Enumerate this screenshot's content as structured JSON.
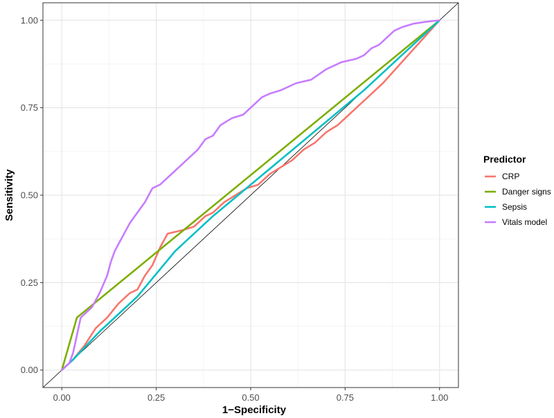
{
  "chart_data": {
    "type": "line",
    "xlabel": "1−Specificity",
    "ylabel": "Sensitivity",
    "xlim": [
      -0.05,
      1.05
    ],
    "ylim": [
      -0.05,
      1.05
    ],
    "x_ticks": [
      0.0,
      0.25,
      0.5,
      0.75,
      1.0
    ],
    "x_tick_labels": [
      "0.00",
      "0.25",
      "0.50",
      "0.75",
      "1.00"
    ],
    "y_ticks": [
      0.0,
      0.25,
      0.5,
      0.75,
      1.0
    ],
    "y_tick_labels": [
      "0.00",
      "0.25",
      "0.50",
      "0.75",
      "1.00"
    ],
    "grid": true,
    "reference_line": {
      "x": [
        0,
        1
      ],
      "y": [
        0,
        1
      ],
      "color": "#000000"
    },
    "legend": {
      "title": "Predictor",
      "position": "right"
    },
    "series": [
      {
        "name": "CRP",
        "color": "#F8766D",
        "x": [
          0.0,
          0.03,
          0.06,
          0.09,
          0.12,
          0.15,
          0.18,
          0.2,
          0.22,
          0.24,
          0.26,
          0.27,
          0.28,
          0.3,
          0.32,
          0.35,
          0.38,
          0.4,
          0.43,
          0.46,
          0.49,
          0.52,
          0.55,
          0.58,
          0.61,
          0.64,
          0.67,
          0.7,
          0.73,
          0.76,
          0.8,
          0.85,
          0.9,
          0.95,
          1.0
        ],
        "y": [
          0.0,
          0.03,
          0.07,
          0.12,
          0.15,
          0.19,
          0.22,
          0.23,
          0.27,
          0.3,
          0.35,
          0.37,
          0.39,
          0.395,
          0.4,
          0.41,
          0.44,
          0.45,
          0.48,
          0.5,
          0.52,
          0.53,
          0.56,
          0.58,
          0.6,
          0.63,
          0.65,
          0.68,
          0.7,
          0.73,
          0.77,
          0.82,
          0.88,
          0.94,
          1.0
        ]
      },
      {
        "name": "Danger signs",
        "color": "#7CAE00",
        "x": [
          0.0,
          0.04,
          1.0
        ],
        "y": [
          0.0,
          0.15,
          1.0
        ]
      },
      {
        "name": "Sepsis",
        "color": "#00BFC4",
        "x": [
          0.0,
          0.03,
          0.1,
          0.2,
          0.3,
          0.4,
          0.5,
          0.6,
          0.7,
          0.8,
          0.9,
          1.0
        ],
        "y": [
          0.0,
          0.03,
          0.11,
          0.21,
          0.34,
          0.44,
          0.53,
          0.62,
          0.71,
          0.8,
          0.9,
          1.0
        ]
      },
      {
        "name": "Vitals model",
        "color": "#C77CFF",
        "x": [
          0.0,
          0.02,
          0.03,
          0.04,
          0.05,
          0.06,
          0.08,
          0.1,
          0.12,
          0.13,
          0.14,
          0.16,
          0.18,
          0.2,
          0.22,
          0.24,
          0.26,
          0.3,
          0.33,
          0.36,
          0.38,
          0.4,
          0.42,
          0.45,
          0.48,
          0.5,
          0.53,
          0.55,
          0.58,
          0.62,
          0.66,
          0.7,
          0.74,
          0.78,
          0.8,
          0.82,
          0.84,
          0.86,
          0.88,
          0.9,
          0.93,
          0.96,
          1.0
        ],
        "y": [
          0.0,
          0.02,
          0.05,
          0.1,
          0.15,
          0.16,
          0.18,
          0.22,
          0.27,
          0.31,
          0.34,
          0.38,
          0.42,
          0.45,
          0.48,
          0.52,
          0.53,
          0.57,
          0.6,
          0.63,
          0.66,
          0.67,
          0.7,
          0.72,
          0.73,
          0.75,
          0.78,
          0.79,
          0.8,
          0.82,
          0.83,
          0.86,
          0.88,
          0.89,
          0.9,
          0.92,
          0.93,
          0.95,
          0.97,
          0.98,
          0.99,
          0.995,
          1.0
        ]
      }
    ]
  }
}
